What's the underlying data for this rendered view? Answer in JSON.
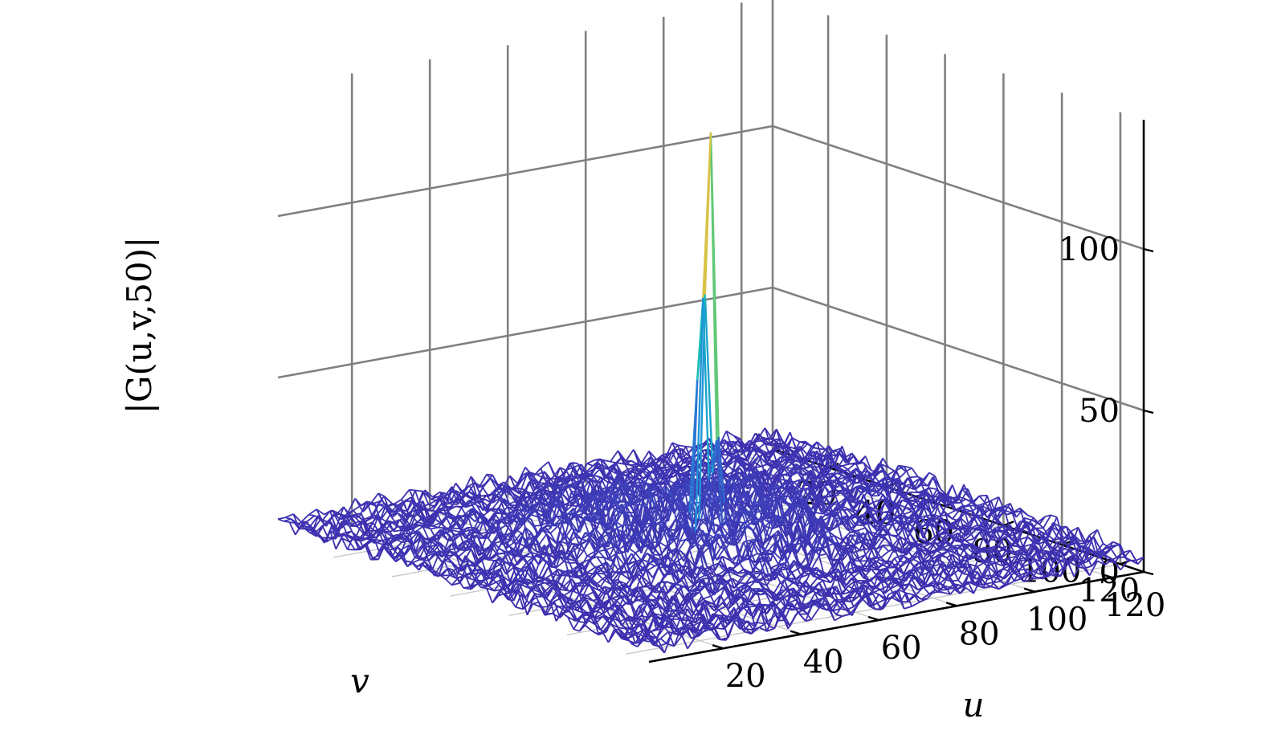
{
  "chart_data": {
    "type": "surface3d",
    "title": "",
    "xlabel": "u",
    "ylabel": "v",
    "zlabel": "|G(u,v,50)|",
    "xlim": [
      1,
      128
    ],
    "ylim": [
      1,
      128
    ],
    "zlim": [
      0,
      140
    ],
    "x_ticks": [
      20,
      40,
      60,
      80,
      100,
      120
    ],
    "y_ticks": [
      20,
      40,
      60,
      80,
      100,
      120
    ],
    "z_ticks": [
      0,
      50,
      100
    ],
    "x_tick_labels": [
      "20",
      "40",
      "60",
      "80",
      "100",
      "120"
    ],
    "y_tick_labels": [
      "20",
      "40",
      "60",
      "80",
      "100",
      "120"
    ],
    "z_tick_labels": [
      "0",
      "50",
      "100"
    ],
    "grid": true,
    "colormap": "parula",
    "peak": {
      "u": 64,
      "v": 64,
      "value": 131
    },
    "background_level_approx": 6,
    "background_max_approx": 27,
    "colors": {
      "grid": "#808080",
      "axis": "#000000",
      "mesh_low": "#3d3ea6",
      "mesh_high": "#f9e31a"
    }
  }
}
